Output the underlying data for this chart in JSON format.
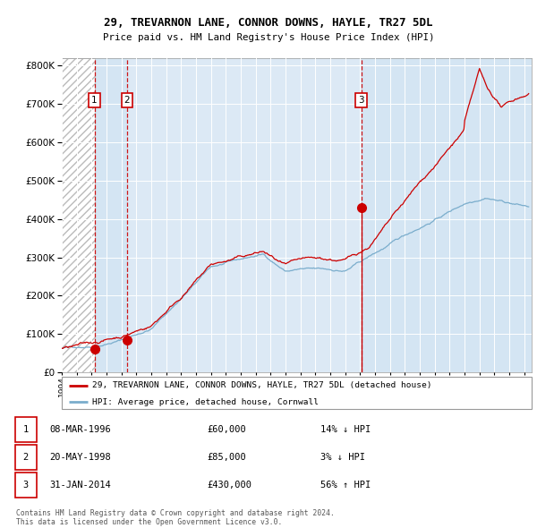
{
  "title": "29, TREVARNON LANE, CONNOR DOWNS, HAYLE, TR27 5DL",
  "subtitle": "Price paid vs. HM Land Registry's House Price Index (HPI)",
  "legend_line1": "29, TREVARNON LANE, CONNOR DOWNS, HAYLE, TR27 5DL (detached house)",
  "legend_line2": "HPI: Average price, detached house, Cornwall",
  "transactions": [
    {
      "num": 1,
      "date": "08-MAR-1996",
      "price": 60000,
      "hpi_rel": "14% ↓ HPI",
      "year": 1996.19
    },
    {
      "num": 2,
      "date": "20-MAY-1998",
      "price": 85000,
      "hpi_rel": "3% ↓ HPI",
      "year": 1998.38
    },
    {
      "num": 3,
      "date": "31-JAN-2014",
      "price": 430000,
      "hpi_rel": "56% ↑ HPI",
      "year": 2014.08
    }
  ],
  "footer": "Contains HM Land Registry data © Crown copyright and database right 2024.\nThis data is licensed under the Open Government Licence v3.0.",
  "red_color": "#cc0000",
  "blue_color": "#7aadcc",
  "background_color": "#dce9f5",
  "ylim": [
    0,
    820000
  ],
  "xlim_start": 1994.0,
  "xlim_end": 2025.5
}
